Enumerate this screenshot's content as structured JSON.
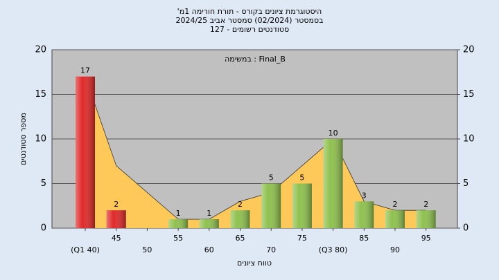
{
  "chart_data": {
    "type": "bar",
    "title_lines": [
      "'היסטוגרמת ציונים בקורס - תורת חורימה 1מ",
      "בסמסטר  (02/2024)  סמסטר אביב 2024/25",
      "סטודנטים רשומים - 127"
    ],
    "annotation": "במשימה : Final_B",
    "x_label": "טווח ציונים",
    "y_label": "מספר סטודנטים",
    "categories": [
      "(Q1 40)",
      "45",
      "50",
      "55",
      "60",
      "65",
      "70",
      "75",
      "(Q3 80)",
      "85",
      "90",
      "95"
    ],
    "values": [
      17,
      2,
      0,
      1,
      1,
      2,
      5,
      5,
      10,
      3,
      2,
      2
    ],
    "colors": [
      "#e02a2a",
      "#e02a2a",
      "#8fc14f",
      "#8fc14f",
      "#8fc14f",
      "#8fc14f",
      "#8fc14f",
      "#8fc14f",
      "#8fc14f",
      "#8fc14f",
      "#8fc14f",
      "#8fc14f"
    ],
    "area_values": [
      17,
      7,
      4,
      1,
      1,
      3,
      4,
      7,
      10,
      3,
      2,
      2
    ],
    "area_color": "#ffc95a",
    "ylim": [
      0,
      20
    ],
    "yticks": [
      0,
      5,
      10,
      15,
      20
    ],
    "y2lim": [
      0,
      20
    ],
    "y2ticks": [
      0,
      5,
      10,
      15,
      20
    ],
    "grid": true
  }
}
